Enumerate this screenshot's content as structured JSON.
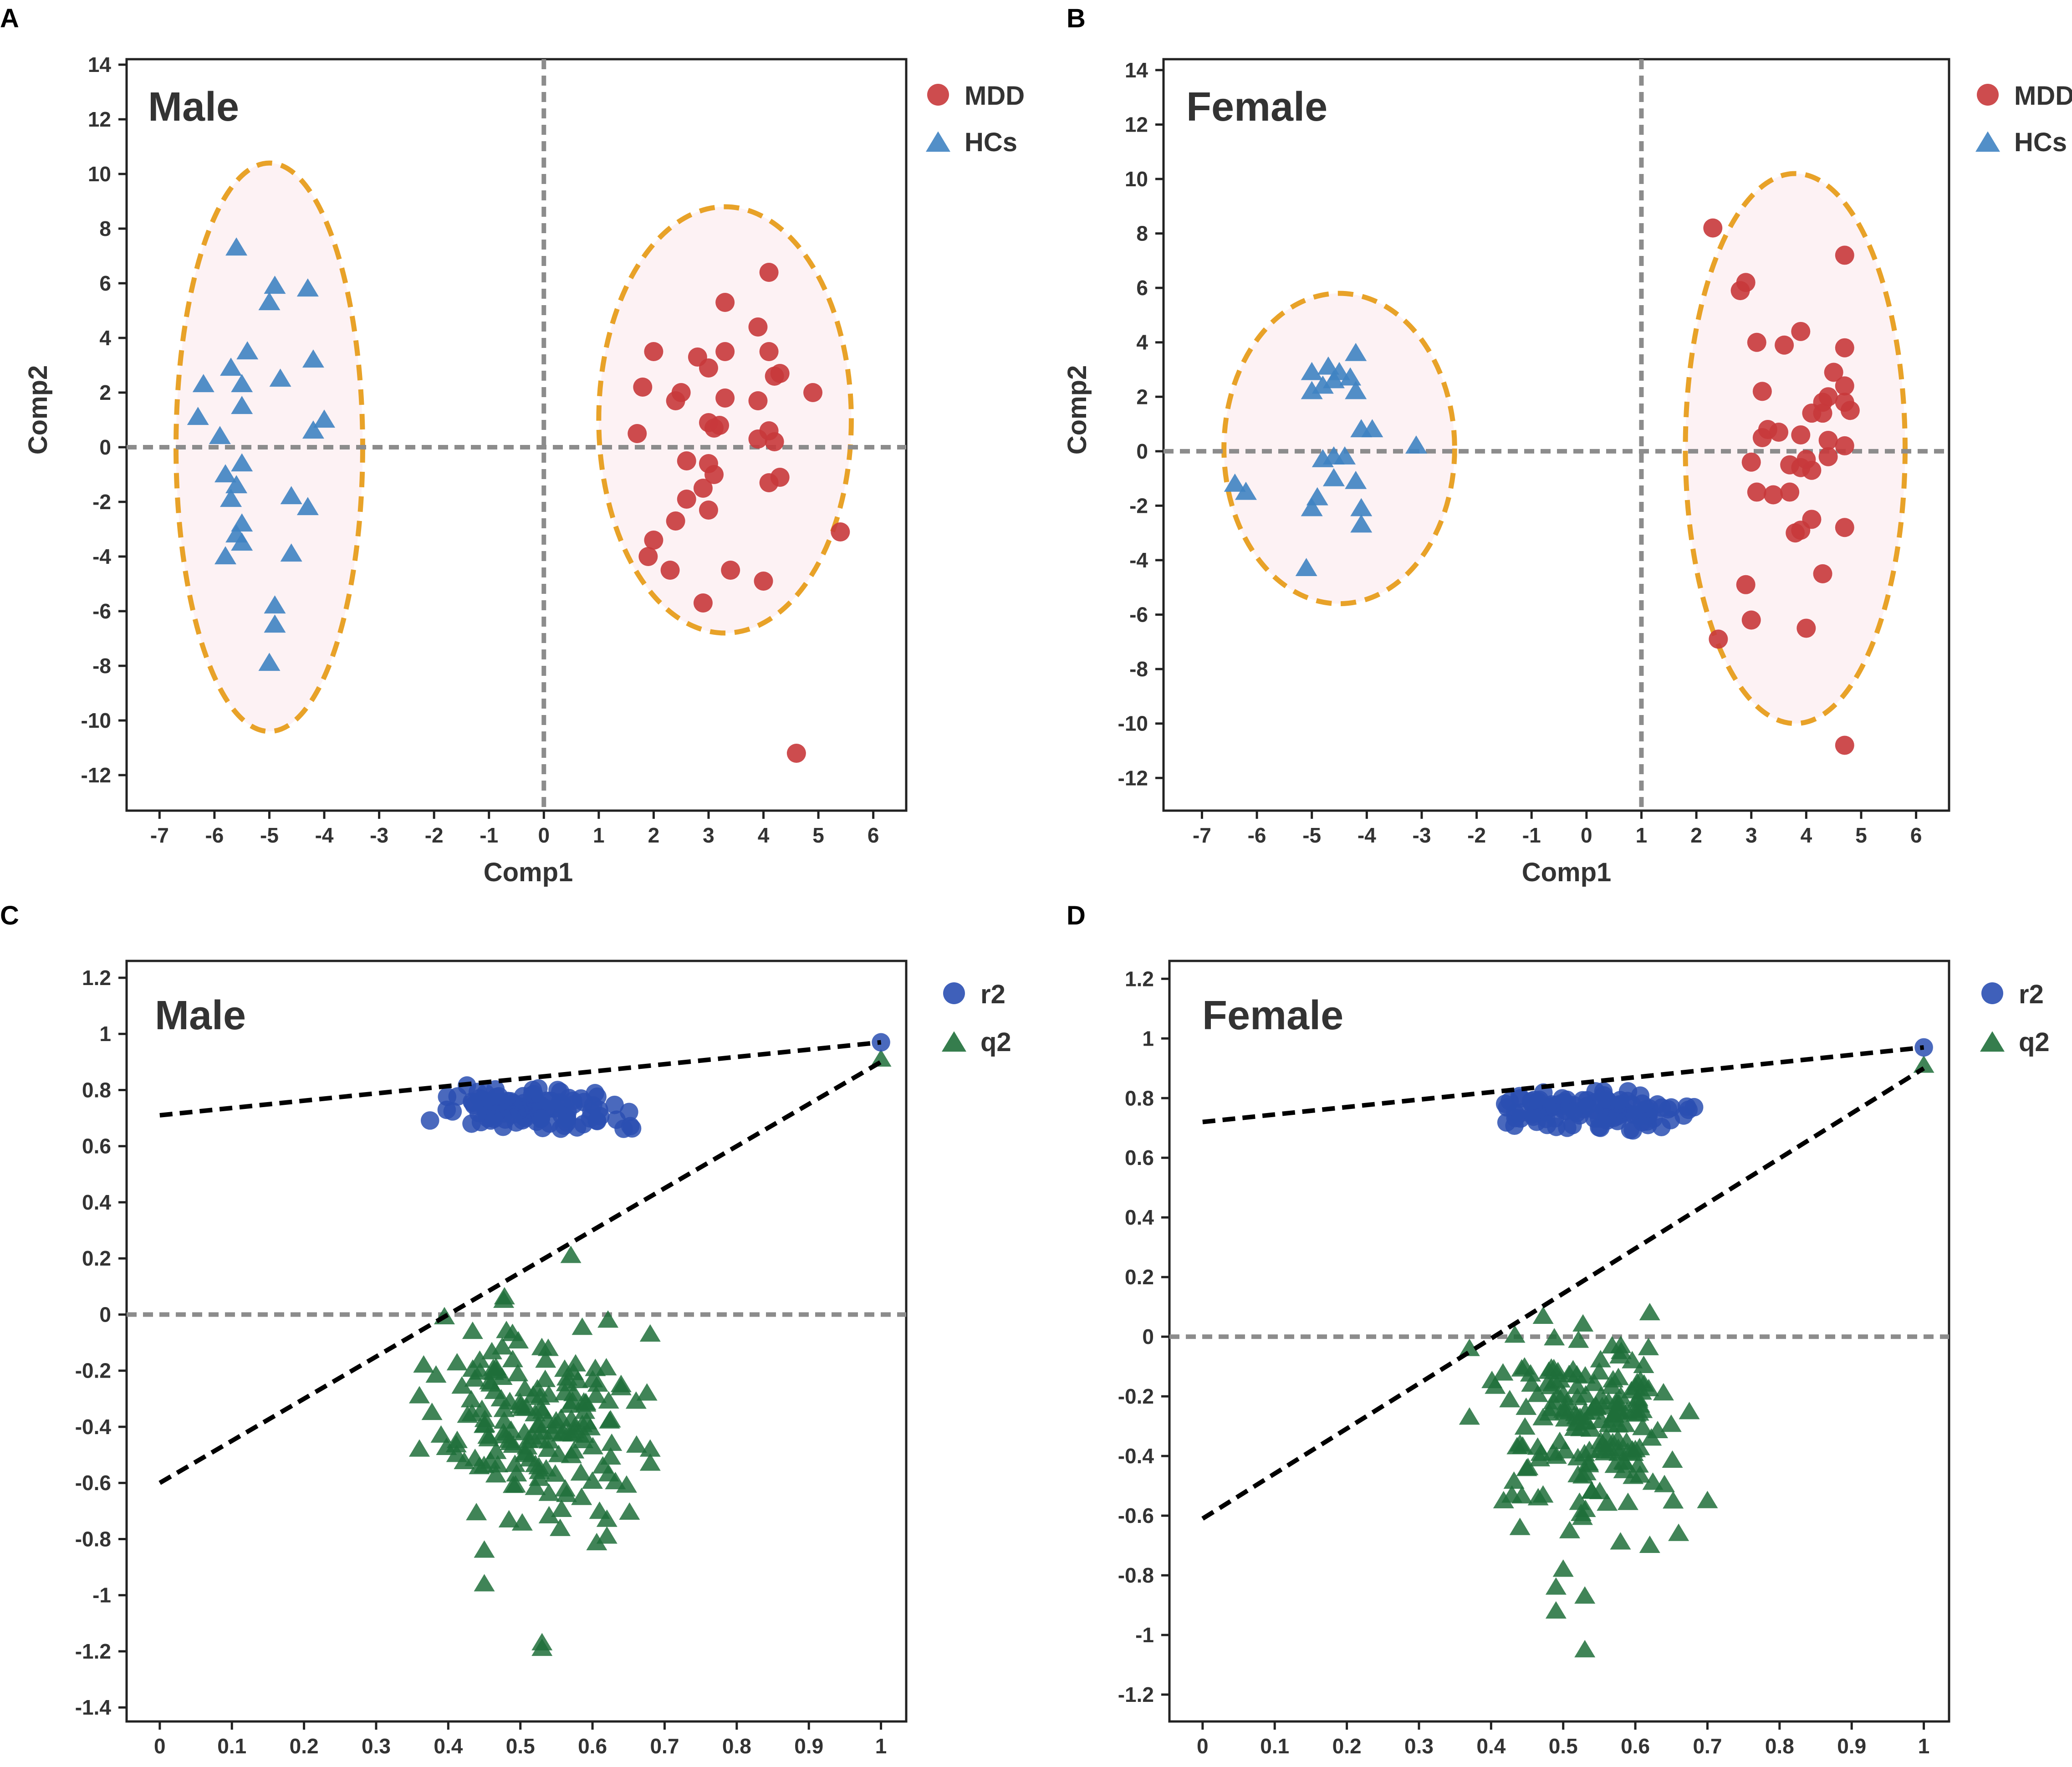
{
  "figure": {
    "colors": {
      "mdd": "#c8393b",
      "hcs": "#3f83c2",
      "r2": "#2a4fb2",
      "q2": "#1f6f3a",
      "ellipse": "#e8a228",
      "ellipse_fill": "#fdf2f4",
      "refline": "#8c8c8c",
      "regline": "#000000"
    }
  },
  "chart_data": [
    {
      "panel": "A",
      "type": "scatter",
      "title": "Male",
      "xlabel": "Comp1",
      "ylabel": "Comp2",
      "xlim": [
        -7.6,
        6.6
      ],
      "ylim": [
        -13.3,
        14.2
      ],
      "xticks": [
        -7,
        -6,
        -5,
        -4,
        -3,
        -2,
        -1,
        0,
        1,
        2,
        3,
        4,
        5,
        6
      ],
      "yticks": [
        -12,
        -10,
        -8,
        -6,
        -4,
        -2,
        0,
        2,
        4,
        6,
        8,
        10,
        12,
        14
      ],
      "ref_x": 0,
      "ref_y": 0,
      "legend": [
        {
          "label": "MDD",
          "marker": "circle",
          "color_key": "mdd"
        },
        {
          "label": "HCs",
          "marker": "triangle",
          "color_key": "hcs"
        }
      ],
      "ellipses": [
        {
          "center": [
            -5.0,
            0.0
          ],
          "radii": [
            1.7,
            10.4
          ]
        },
        {
          "center": [
            3.3,
            1.0
          ],
          "radii": [
            2.3,
            7.8
          ]
        }
      ],
      "series": [
        {
          "name": "MDD",
          "marker": "circle",
          "color_key": "mdd",
          "points": [
            [
              4.1,
              6.4
            ],
            [
              3.3,
              5.3
            ],
            [
              3.9,
              4.4
            ],
            [
              2.0,
              3.5
            ],
            [
              2.8,
              3.3
            ],
            [
              3.3,
              3.5
            ],
            [
              4.1,
              3.5
            ],
            [
              1.8,
              2.2
            ],
            [
              2.5,
              2.0
            ],
            [
              2.4,
              1.7
            ],
            [
              3.0,
              2.9
            ],
            [
              4.3,
              2.7
            ],
            [
              4.2,
              2.6
            ],
            [
              4.9,
              2.0
            ],
            [
              3.3,
              1.8
            ],
            [
              3.9,
              1.7
            ],
            [
              3.0,
              0.9
            ],
            [
              3.1,
              0.7
            ],
            [
              3.2,
              0.8
            ],
            [
              1.7,
              0.5
            ],
            [
              4.1,
              0.6
            ],
            [
              3.9,
              0.3
            ],
            [
              4.2,
              0.2
            ],
            [
              2.6,
              -0.5
            ],
            [
              3.0,
              -0.6
            ],
            [
              3.1,
              -1.0
            ],
            [
              4.3,
              -1.1
            ],
            [
              4.1,
              -1.3
            ],
            [
              2.9,
              -1.5
            ],
            [
              2.6,
              -1.9
            ],
            [
              3.0,
              -2.3
            ],
            [
              2.4,
              -2.7
            ],
            [
              2.0,
              -3.4
            ],
            [
              1.9,
              -4.0
            ],
            [
              2.3,
              -4.5
            ],
            [
              3.4,
              -4.5
            ],
            [
              4.0,
              -4.9
            ],
            [
              2.9,
              -5.7
            ],
            [
              5.4,
              -3.1
            ],
            [
              4.6,
              -11.2
            ]
          ]
        },
        {
          "name": "HCs",
          "marker": "triangle",
          "color_key": "hcs",
          "points": [
            [
              -5.6,
              7.3
            ],
            [
              -4.9,
              5.9
            ],
            [
              -4.3,
              5.8
            ],
            [
              -5.0,
              5.3
            ],
            [
              -5.4,
              3.5
            ],
            [
              -5.7,
              2.9
            ],
            [
              -4.2,
              3.2
            ],
            [
              -5.5,
              2.3
            ],
            [
              -6.2,
              2.3
            ],
            [
              -4.8,
              2.5
            ],
            [
              -5.5,
              1.5
            ],
            [
              -6.3,
              1.1
            ],
            [
              -4.0,
              1.0
            ],
            [
              -4.2,
              0.6
            ],
            [
              -5.9,
              0.4
            ],
            [
              -5.5,
              -0.6
            ],
            [
              -5.8,
              -1.0
            ],
            [
              -5.6,
              -1.4
            ],
            [
              -4.6,
              -1.8
            ],
            [
              -5.7,
              -1.9
            ],
            [
              -4.3,
              -2.2
            ],
            [
              -5.5,
              -2.8
            ],
            [
              -5.6,
              -3.2
            ],
            [
              -5.5,
              -3.5
            ],
            [
              -4.6,
              -3.9
            ],
            [
              -5.8,
              -4.0
            ],
            [
              -4.9,
              -5.8
            ],
            [
              -4.9,
              -6.5
            ],
            [
              -5.0,
              -7.9
            ]
          ]
        }
      ]
    },
    {
      "panel": "B",
      "type": "scatter",
      "title": "Female",
      "xlabel": "Comp1",
      "ylabel": "Comp2",
      "xlim": [
        -7.7,
        6.6
      ],
      "ylim": [
        -13.2,
        14.4
      ],
      "xticks": [
        -7,
        -6,
        -5,
        -4,
        -3,
        -2,
        -1,
        0,
        1,
        2,
        3,
        4,
        5,
        6
      ],
      "yticks": [
        -12,
        -10,
        -8,
        -6,
        -4,
        -2,
        0,
        2,
        4,
        6,
        8,
        10,
        12,
        14
      ],
      "ref_x": 1,
      "ref_y": 0,
      "legend": [
        {
          "label": "MDD",
          "marker": "circle",
          "color_key": "mdd"
        },
        {
          "label": "HCs",
          "marker": "triangle",
          "color_key": "hcs"
        }
      ],
      "ellipses": [
        {
          "center": [
            -4.5,
            0.1
          ],
          "radii": [
            2.1,
            5.7
          ]
        },
        {
          "center": [
            3.8,
            0.1
          ],
          "radii": [
            2.0,
            10.1
          ]
        }
      ],
      "series": [
        {
          "name": "MDD",
          "marker": "circle",
          "color_key": "mdd",
          "points": [
            [
              2.3,
              8.2
            ],
            [
              2.9,
              6.2
            ],
            [
              2.8,
              5.9
            ],
            [
              4.7,
              7.2
            ],
            [
              3.1,
              4.0
            ],
            [
              3.6,
              3.9
            ],
            [
              3.9,
              4.4
            ],
            [
              4.7,
              3.8
            ],
            [
              4.5,
              2.9
            ],
            [
              4.7,
              2.4
            ],
            [
              3.2,
              2.2
            ],
            [
              4.4,
              2.0
            ],
            [
              4.7,
              1.8
            ],
            [
              4.3,
              1.8
            ],
            [
              4.8,
              1.5
            ],
            [
              4.1,
              1.4
            ],
            [
              4.3,
              1.4
            ],
            [
              3.2,
              0.5
            ],
            [
              3.3,
              0.8
            ],
            [
              3.5,
              0.7
            ],
            [
              3.9,
              0.6
            ],
            [
              4.4,
              0.4
            ],
            [
              4.7,
              0.2
            ],
            [
              3.0,
              -0.4
            ],
            [
              3.7,
              -0.5
            ],
            [
              3.9,
              -0.6
            ],
            [
              4.1,
              -0.7
            ],
            [
              4.4,
              -0.2
            ],
            [
              4.0,
              -0.3
            ],
            [
              3.1,
              -1.5
            ],
            [
              3.4,
              -1.6
            ],
            [
              3.7,
              -1.5
            ],
            [
              4.1,
              -2.5
            ],
            [
              3.8,
              -3.0
            ],
            [
              3.9,
              -2.9
            ],
            [
              4.7,
              -2.8
            ],
            [
              4.3,
              -4.5
            ],
            [
              2.9,
              -4.9
            ],
            [
              3.0,
              -6.2
            ],
            [
              4.0,
              -6.5
            ],
            [
              2.4,
              -6.9
            ],
            [
              4.7,
              -10.8
            ]
          ]
        },
        {
          "name": "HCs",
          "marker": "triangle",
          "color_key": "hcs",
          "points": [
            [
              -4.2,
              3.6
            ],
            [
              -4.7,
              3.1
            ],
            [
              -5.0,
              2.9
            ],
            [
              -4.5,
              2.9
            ],
            [
              -4.6,
              2.6
            ],
            [
              -4.3,
              2.7
            ],
            [
              -5.0,
              2.2
            ],
            [
              -4.8,
              2.4
            ],
            [
              -4.2,
              2.2
            ],
            [
              -4.1,
              0.8
            ],
            [
              -3.9,
              0.8
            ],
            [
              -3.1,
              0.2
            ],
            [
              -4.6,
              -0.2
            ],
            [
              -4.4,
              -0.2
            ],
            [
              -4.8,
              -0.3
            ],
            [
              -4.2,
              -1.1
            ],
            [
              -4.6,
              -1.0
            ],
            [
              -6.4,
              -1.2
            ],
            [
              -6.2,
              -1.5
            ],
            [
              -4.9,
              -1.7
            ],
            [
              -5.0,
              -2.1
            ],
            [
              -4.1,
              -2.1
            ],
            [
              -4.1,
              -2.7
            ],
            [
              -5.1,
              -4.3
            ]
          ]
        }
      ]
    },
    {
      "panel": "C",
      "type": "scatter",
      "title": "Male",
      "xlim": [
        -0.046,
        1.035
      ],
      "ylim": [
        -1.45,
        1.26
      ],
      "xticks": [
        0,
        0.1,
        0.2,
        0.3,
        0.4,
        0.5,
        0.6,
        0.7,
        0.8,
        0.9,
        1
      ],
      "yticks": [
        -1.4,
        -1.2,
        -1,
        -0.8,
        -0.6,
        -0.4,
        -0.2,
        0,
        0.2,
        0.4,
        0.6,
        0.8,
        1,
        1.2
      ],
      "ref_y": 0,
      "legend": [
        {
          "label": "r2",
          "marker": "circle",
          "color_key": "r2"
        },
        {
          "label": "q2",
          "marker": "triangle",
          "color_key": "q2"
        }
      ],
      "regression_lines": [
        {
          "name": "r2",
          "intercept": 0.71,
          "slope": 0.26
        },
        {
          "name": "q2",
          "intercept": -0.6,
          "slope": 1.5
        }
      ],
      "r2": {
        "x_range": [
          0.36,
          0.68
        ],
        "y_range": [
          0.62,
          0.86
        ],
        "count": 110,
        "endpoint": [
          1.0,
          0.97
        ]
      },
      "q2": {
        "x_range": [
          0.36,
          0.68
        ],
        "y_range": [
          -0.96,
          0.16
        ],
        "count": 170,
        "endpoint": [
          1.0,
          0.91
        ],
        "extra_points": [
          [
            0.57,
            0.21
          ],
          [
            0.36,
            -0.29
          ],
          [
            0.36,
            -0.48
          ],
          [
            0.39,
            -0.43
          ],
          [
            0.45,
            -0.84
          ],
          [
            0.45,
            -0.96
          ],
          [
            0.53,
            -1.17
          ],
          [
            0.53,
            -1.19
          ],
          [
            0.68,
            -0.07
          ],
          [
            0.68,
            -0.48
          ],
          [
            0.68,
            -0.53
          ],
          [
            0.62,
            -0.73
          ],
          [
            0.62,
            -0.79
          ]
        ]
      }
    },
    {
      "panel": "D",
      "type": "scatter",
      "title": "Female",
      "xlim": [
        -0.046,
        1.035
      ],
      "ylim": [
        -1.29,
        1.26
      ],
      "xticks": [
        0,
        0.1,
        0.2,
        0.3,
        0.4,
        0.5,
        0.6,
        0.7,
        0.8,
        0.9,
        1
      ],
      "yticks": [
        -1.2,
        -1,
        -0.8,
        -0.6,
        -0.4,
        -0.2,
        0,
        0.2,
        0.4,
        0.6,
        0.8,
        1,
        1.2
      ],
      "ref_y": 0,
      "legend": [
        {
          "label": "r2",
          "marker": "circle",
          "color_key": "r2"
        },
        {
          "label": "q2",
          "marker": "triangle",
          "color_key": "q2"
        }
      ],
      "regression_lines": [
        {
          "name": "r2",
          "intercept": 0.72,
          "slope": 0.25
        },
        {
          "name": "q2",
          "intercept": -0.61,
          "slope": 1.51
        }
      ],
      "r2": {
        "x_range": [
          0.38,
          0.7
        ],
        "y_range": [
          0.66,
          0.86
        ],
        "count": 110,
        "endpoint": [
          1.0,
          0.97
        ]
      },
      "q2": {
        "x_range": [
          0.38,
          0.7
        ],
        "y_range": [
          -0.72,
          0.12
        ],
        "count": 170,
        "endpoint": [
          1.0,
          0.91
        ],
        "extra_points": [
          [
            0.37,
            -0.04
          ],
          [
            0.37,
            -0.27
          ],
          [
            0.44,
            -0.36
          ],
          [
            0.44,
            -0.64
          ],
          [
            0.49,
            -0.84
          ],
          [
            0.49,
            -0.92
          ],
          [
            0.5,
            -0.78
          ],
          [
            0.53,
            -0.87
          ],
          [
            0.53,
            -1.05
          ],
          [
            0.62,
            0.08
          ],
          [
            0.7,
            -0.55
          ],
          [
            0.66,
            -0.66
          ],
          [
            0.62,
            -0.7
          ]
        ]
      }
    }
  ]
}
